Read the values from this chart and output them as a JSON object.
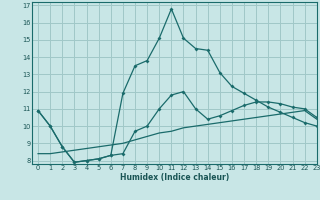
{
  "xlabel": "Humidex (Indice chaleur)",
  "xlim": [
    -0.5,
    23
  ],
  "ylim": [
    7.8,
    17.2
  ],
  "yticks": [
    8,
    9,
    10,
    11,
    12,
    13,
    14,
    15,
    16,
    17
  ],
  "xticks": [
    0,
    1,
    2,
    3,
    4,
    5,
    6,
    7,
    8,
    9,
    10,
    11,
    12,
    13,
    14,
    15,
    16,
    17,
    18,
    19,
    20,
    21,
    22,
    23
  ],
  "bg_color": "#c8e6e6",
  "grid_color": "#a0c8c8",
  "line_color": "#1a6b6b",
  "line1_x": [
    0,
    1,
    2,
    3,
    4,
    5,
    6,
    7,
    8,
    9,
    10,
    11,
    12,
    13,
    14,
    15,
    16,
    17,
    18,
    19,
    20,
    21,
    22,
    23
  ],
  "line1_y": [
    10.9,
    10.0,
    8.8,
    7.9,
    8.0,
    8.1,
    8.3,
    8.4,
    9.7,
    10.0,
    11.0,
    11.8,
    12.0,
    11.0,
    10.4,
    10.6,
    10.9,
    11.2,
    11.4,
    11.4,
    11.3,
    11.1,
    11.0,
    10.5
  ],
  "line2_x": [
    0,
    1,
    2,
    3,
    4,
    5,
    6,
    7,
    8,
    9,
    10,
    11,
    12,
    13,
    14,
    15,
    16,
    17,
    18,
    19,
    20,
    21,
    22,
    23
  ],
  "line2_y": [
    10.9,
    10.0,
    8.8,
    7.9,
    8.0,
    8.1,
    8.3,
    11.9,
    13.5,
    13.8,
    15.1,
    16.8,
    15.1,
    14.5,
    14.4,
    13.1,
    12.3,
    11.9,
    11.5,
    11.1,
    10.8,
    10.5,
    10.2,
    10.0
  ],
  "line3_x": [
    0,
    1,
    2,
    3,
    4,
    5,
    6,
    7,
    8,
    9,
    10,
    11,
    12,
    13,
    14,
    15,
    16,
    17,
    18,
    19,
    20,
    21,
    22,
    23
  ],
  "line3_y": [
    8.4,
    8.4,
    8.5,
    8.6,
    8.7,
    8.8,
    8.9,
    9.0,
    9.2,
    9.4,
    9.6,
    9.7,
    9.9,
    10.0,
    10.1,
    10.2,
    10.3,
    10.4,
    10.5,
    10.6,
    10.7,
    10.8,
    10.9,
    10.4
  ]
}
